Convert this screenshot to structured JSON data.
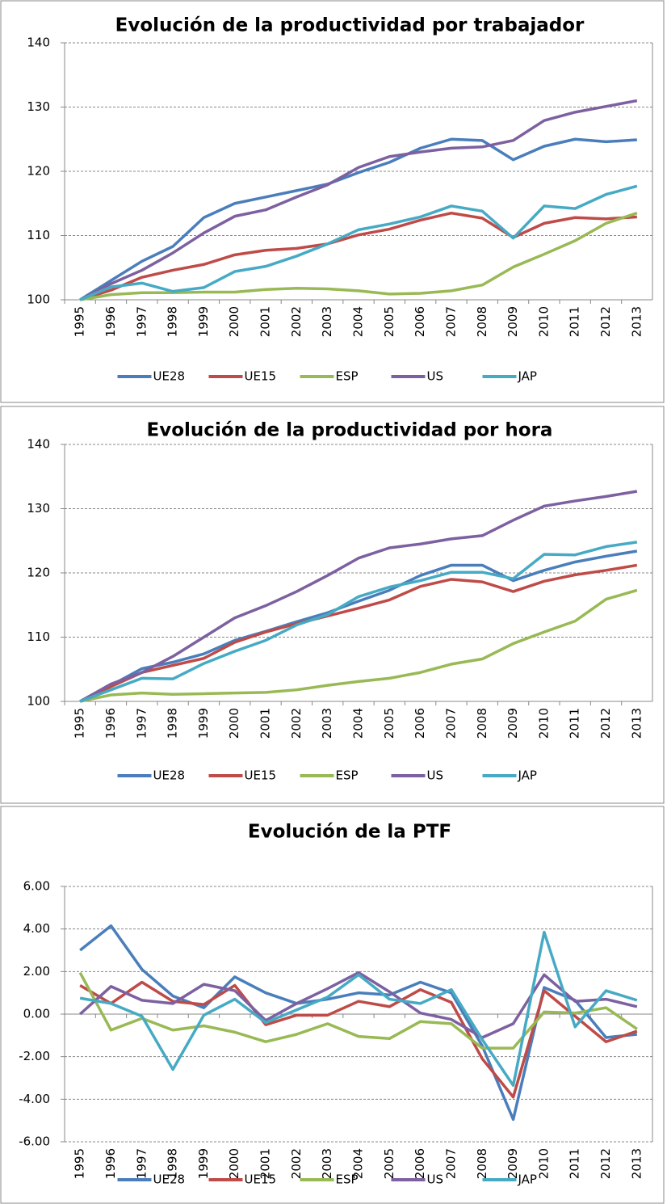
{
  "chart_data": [
    {
      "type": "line",
      "title": "Evolución de la productividad por trabajador",
      "categories": [
        "1995",
        "1996",
        "1997",
        "1998",
        "1999",
        "2000",
        "2001",
        "2002",
        "2003",
        "2004",
        "2005",
        "2006",
        "2007",
        "2008",
        "2009",
        "2010",
        "2011",
        "2012",
        "2013"
      ],
      "series": [
        {
          "name": "UE28",
          "color": "#4a7ebb",
          "values": [
            100,
            103,
            106,
            108.3,
            112.8,
            115,
            116,
            117,
            118,
            119.8,
            121.4,
            123.6,
            125,
            124.8,
            121.8,
            123.9,
            125,
            124.6,
            124.9
          ]
        },
        {
          "name": "UE15",
          "color": "#be4b48",
          "values": [
            100,
            101.5,
            103.5,
            104.6,
            105.5,
            107,
            107.7,
            108,
            108.7,
            110.1,
            111,
            112.4,
            113.5,
            112.7,
            109.7,
            111.9,
            112.8,
            112.6,
            112.9
          ]
        },
        {
          "name": "ESP",
          "color": "#98b954",
          "values": [
            100,
            100.8,
            101.1,
            101.1,
            101.2,
            101.2,
            101.6,
            101.8,
            101.7,
            101.4,
            100.9,
            101,
            101.4,
            102.3,
            105.1,
            107.1,
            109.2,
            111.9,
            113.5
          ]
        },
        {
          "name": "US",
          "color": "#7d60a0",
          "values": [
            100,
            102.5,
            104.6,
            107.3,
            110.4,
            113,
            114,
            116,
            117.9,
            120.6,
            122.3,
            123,
            123.6,
            123.8,
            124.8,
            127.9,
            129.2,
            130.1,
            131
          ]
        },
        {
          "name": "JAP",
          "color": "#46aac5",
          "values": [
            100,
            102,
            102.6,
            101.3,
            101.9,
            104.4,
            105.2,
            106.8,
            108.7,
            110.9,
            111.8,
            112.9,
            114.6,
            113.8,
            109.6,
            114.6,
            114.2,
            116.4,
            117.7
          ]
        }
      ],
      "ylim": [
        100,
        140
      ],
      "yticks": [
        100,
        110,
        120,
        130,
        140
      ],
      "grid": true,
      "legend": "bottom"
    },
    {
      "type": "line",
      "title": "Evolución de la productividad por hora",
      "categories": [
        "1995",
        "1996",
        "1997",
        "1998",
        "1999",
        "2000",
        "2001",
        "2002",
        "2003",
        "2004",
        "2005",
        "2006",
        "2007",
        "2008",
        "2009",
        "2010",
        "2011",
        "2012",
        "2013"
      ],
      "series": [
        {
          "name": "UE28",
          "color": "#4a7ebb",
          "values": [
            100,
            102.5,
            105.1,
            106.1,
            107.4,
            109.5,
            110.9,
            112.4,
            113.8,
            115.6,
            117.3,
            119.6,
            121.2,
            121.2,
            118.8,
            120.4,
            121.7,
            122.6,
            123.4
          ]
        },
        {
          "name": "UE15",
          "color": "#be4b48",
          "values": [
            100,
            102.3,
            104.5,
            105.6,
            106.7,
            109.2,
            110.8,
            112.1,
            113.3,
            114.5,
            115.8,
            117.9,
            119,
            118.6,
            117.1,
            118.7,
            119.7,
            120.4,
            121.2
          ]
        },
        {
          "name": "ESP",
          "color": "#98b954",
          "values": [
            100,
            101,
            101.3,
            101.1,
            101.2,
            101.3,
            101.4,
            101.8,
            102.5,
            103.1,
            103.6,
            104.5,
            105.8,
            106.6,
            109,
            110.8,
            112.5,
            115.9,
            117.3
          ]
        },
        {
          "name": "US",
          "color": "#7d60a0",
          "values": [
            100,
            102.7,
            104.5,
            107,
            110,
            113,
            114.9,
            117.1,
            119.6,
            122.3,
            123.9,
            124.5,
            125.3,
            125.8,
            128.2,
            130.4,
            131.2,
            131.9,
            132.7
          ]
        },
        {
          "name": "JAP",
          "color": "#46aac5",
          "values": [
            100,
            101.8,
            103.6,
            103.5,
            105.9,
            107.8,
            109.5,
            111.9,
            113.5,
            116.3,
            117.8,
            118.8,
            120.1,
            120.1,
            119.1,
            122.9,
            122.8,
            124.1,
            124.8
          ]
        }
      ],
      "ylim": [
        100,
        140
      ],
      "yticks": [
        100,
        110,
        120,
        130,
        140
      ],
      "grid": true,
      "legend": "bottom"
    },
    {
      "type": "line",
      "title": "Evolución de la PTF",
      "categories": [
        "1995",
        "1996",
        "1997",
        "1998",
        "1999",
        "2000",
        "2001",
        "2002",
        "2003",
        "2004",
        "2005",
        "2006",
        "2007",
        "2008",
        "2009",
        "2010",
        "2011",
        "2012",
        "2013"
      ],
      "series": [
        {
          "name": "UE28",
          "color": "#4a7ebb",
          "values": [
            3.0,
            4.15,
            2.1,
            0.85,
            0.3,
            1.75,
            1.0,
            0.5,
            0.7,
            1.0,
            0.9,
            1.5,
            1.0,
            -1.5,
            -4.95,
            1.25,
            0.65,
            -1.1,
            -0.95
          ]
        },
        {
          "name": "UE15",
          "color": "#be4b48",
          "values": [
            1.35,
            0.5,
            1.5,
            0.6,
            0.45,
            1.35,
            -0.5,
            -0.05,
            -0.05,
            0.6,
            0.35,
            1.15,
            0.55,
            -2.1,
            -3.9,
            1.1,
            -0.1,
            -1.3,
            -0.8
          ]
        },
        {
          "name": "ESP",
          "color": "#98b954",
          "values": [
            1.95,
            -0.75,
            -0.2,
            -0.75,
            -0.55,
            -0.85,
            -1.3,
            -0.95,
            -0.45,
            -1.05,
            -1.15,
            -0.35,
            -0.45,
            -1.6,
            -1.6,
            0.1,
            0.05,
            0.3,
            -0.7
          ]
        },
        {
          "name": "US",
          "color": "#7d60a0",
          "values": [
            0.0,
            1.3,
            0.65,
            0.5,
            1.4,
            1.1,
            -0.3,
            0.5,
            1.2,
            1.95,
            1.05,
            0.05,
            -0.25,
            -1.1,
            -0.45,
            1.85,
            0.6,
            0.7,
            0.35
          ]
        },
        {
          "name": "JAP",
          "color": "#46aac5",
          "values": [
            0.75,
            0.5,
            -0.1,
            -2.6,
            -0.05,
            0.7,
            -0.4,
            0.2,
            0.8,
            1.85,
            0.7,
            0.5,
            1.15,
            -1.2,
            -3.35,
            3.85,
            -0.6,
            1.1,
            0.65
          ]
        }
      ],
      "ylim": [
        -6,
        6
      ],
      "yticks": [
        {
          "value": -6,
          "label": "-6.00"
        },
        {
          "value": -4,
          "label": "-4.00"
        },
        {
          "value": -2,
          "label": "-2.00"
        },
        {
          "value": 0,
          "label": "0.00"
        },
        {
          "value": 2,
          "label": "2.00"
        },
        {
          "value": 4,
          "label": "4.00"
        },
        {
          "value": 6,
          "label": "6.00"
        }
      ],
      "grid": true,
      "legend": "bottom"
    }
  ]
}
